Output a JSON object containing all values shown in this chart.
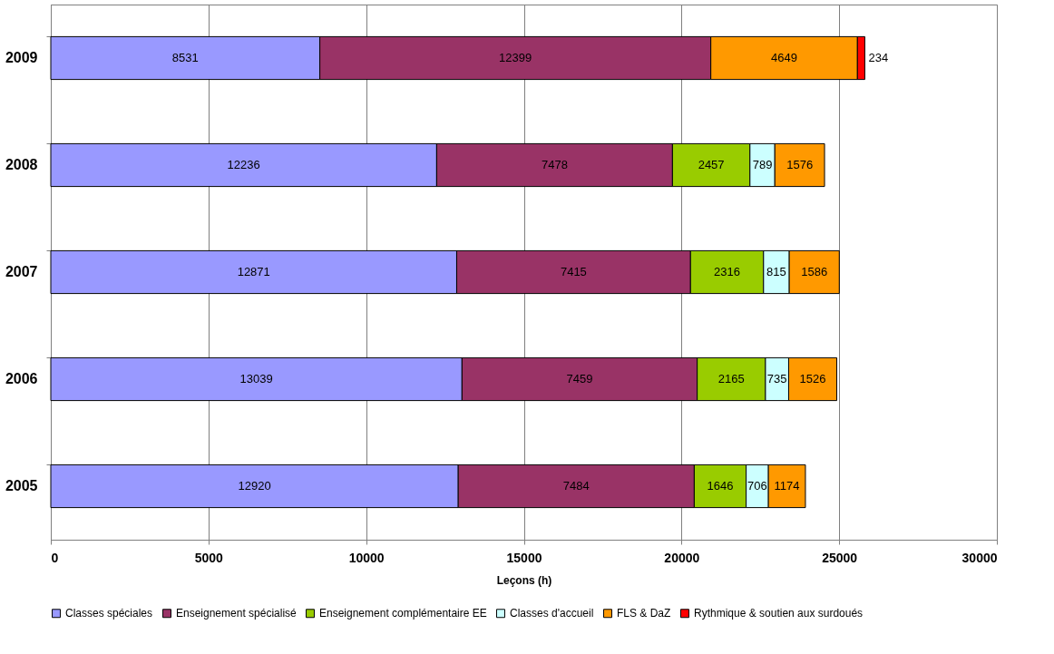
{
  "chart_data": {
    "type": "bar",
    "orientation": "horizontal",
    "stacked": true,
    "xlabel": "Leçons (h)",
    "categories": [
      "2009",
      "2008",
      "2007",
      "2006",
      "2005"
    ],
    "series": [
      {
        "name": "Classes spéciales",
        "color": "#9999ff",
        "values": [
          8531,
          12236,
          12871,
          13039,
          12920
        ]
      },
      {
        "name": "Enseignement spécialisé",
        "color": "#993366",
        "values": [
          12399,
          7478,
          7415,
          7459,
          7484
        ]
      },
      {
        "name": "Enseignement complémentaire EE",
        "color": "#99cc00",
        "values": [
          null,
          2457,
          2316,
          2165,
          1646
        ]
      },
      {
        "name": "Classes d'accueil",
        "color": "#ccffff",
        "values": [
          null,
          789,
          815,
          735,
          706
        ]
      },
      {
        "name": "FLS & DaZ",
        "color": "#ff9900",
        "values": [
          4649,
          1576,
          1586,
          1526,
          1174
        ]
      },
      {
        "name": "Rythmique & soutien aux surdoués",
        "color": "#ff0000",
        "values": [
          234,
          null,
          null,
          null,
          null
        ]
      }
    ],
    "xlim": [
      0,
      30000
    ],
    "xticks": [
      0,
      5000,
      10000,
      15000,
      20000,
      25000,
      30000
    ],
    "grid": "x",
    "legend": "bottom",
    "data_labels": true
  }
}
